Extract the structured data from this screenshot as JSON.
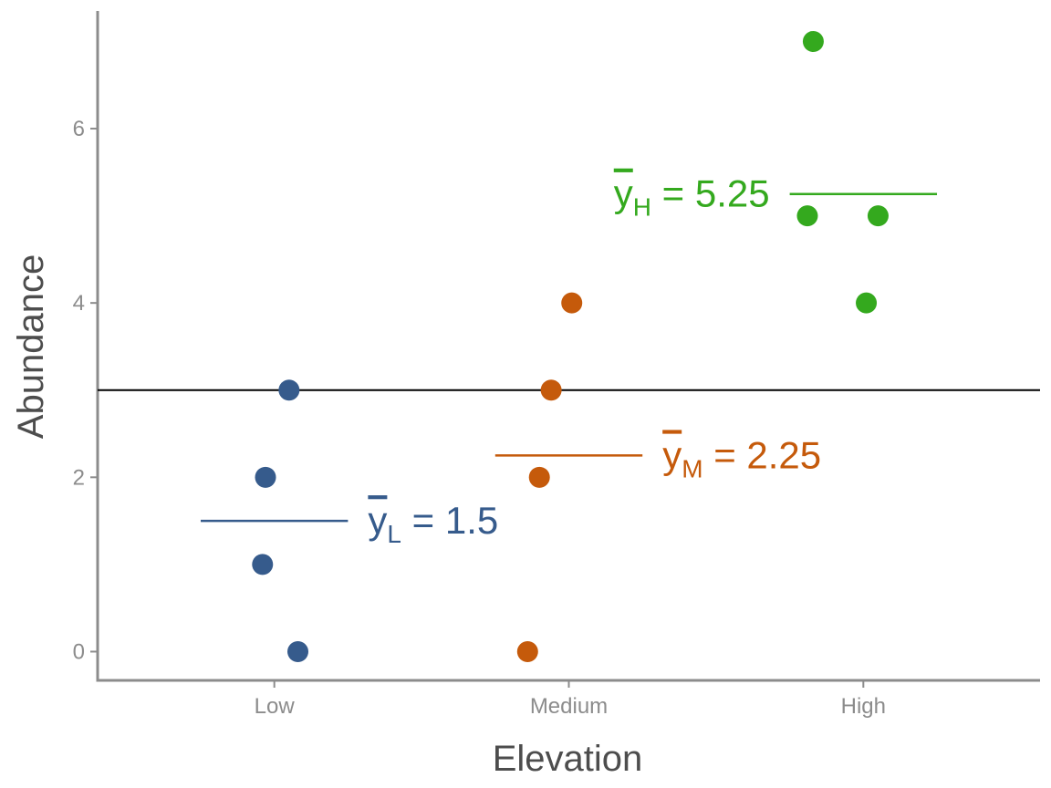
{
  "chart_data": {
    "type": "scatter",
    "xlabel": "Elevation",
    "ylabel": "Abundance",
    "categories": [
      "Low",
      "Medium",
      "High"
    ],
    "ylim": [
      -0.33,
      7.35
    ],
    "yticks": [
      0,
      2,
      4,
      6
    ],
    "grid": false,
    "grand_mean": 3,
    "series": [
      {
        "category": "Low",
        "color": "#365b8c",
        "points": [
          {
            "x": 1.05,
            "y": 3
          },
          {
            "x": 0.97,
            "y": 2
          },
          {
            "x": 0.96,
            "y": 1
          },
          {
            "x": 1.08,
            "y": 0
          }
        ],
        "mean": 1.5,
        "mean_label": {
          "symbol": "y",
          "subscript": "L",
          "text": " = 1.5"
        }
      },
      {
        "category": "Medium",
        "color": "#c55a0b",
        "points": [
          {
            "x": 2.01,
            "y": 4
          },
          {
            "x": 1.94,
            "y": 3
          },
          {
            "x": 1.9,
            "y": 2
          },
          {
            "x": 1.86,
            "y": 0
          }
        ],
        "mean": 2.25,
        "mean_label": {
          "symbol": "y",
          "subscript": "M",
          "text": " = 2.25"
        }
      },
      {
        "category": "High",
        "color": "#34a91e",
        "points": [
          {
            "x": 2.83,
            "y": 7
          },
          {
            "x": 2.81,
            "y": 5
          },
          {
            "x": 3.05,
            "y": 5
          },
          {
            "x": 3.01,
            "y": 4
          }
        ],
        "mean": 5.25,
        "mean_label": {
          "symbol": "y",
          "subscript": "H",
          "text": " = 5.25"
        }
      }
    ]
  }
}
